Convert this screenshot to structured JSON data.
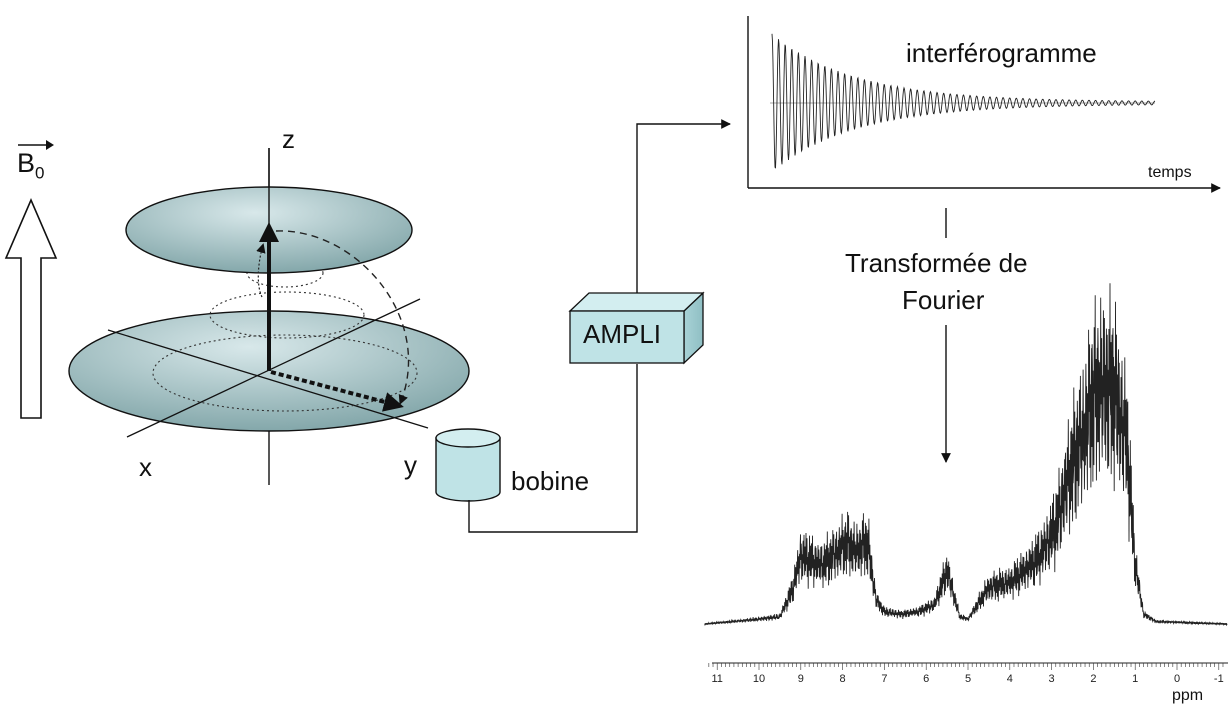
{
  "labels": {
    "b0_letter": "B",
    "b0_subscript": "0",
    "axis_z": "z",
    "axis_x": "x",
    "axis_y": "y",
    "coil": "bobine",
    "amplifier": "AMPLI",
    "fid_title": "interférogramme",
    "fid_axis": "temps",
    "transform_line1": "Transformée de",
    "transform_line2": "Fourier",
    "spectrum_axis_unit": "ppm"
  },
  "spectrum": {
    "ticks": [
      "11",
      "10",
      "9",
      "8",
      "7",
      "6",
      "5",
      "4",
      "3",
      "2",
      "1",
      "0",
      "-1"
    ]
  },
  "colors": {
    "disk_fill": "#8fb1b3",
    "disk_highlight": "#d8e8ea",
    "box_fill": "#bfe3e6",
    "ink": "#111111"
  }
}
